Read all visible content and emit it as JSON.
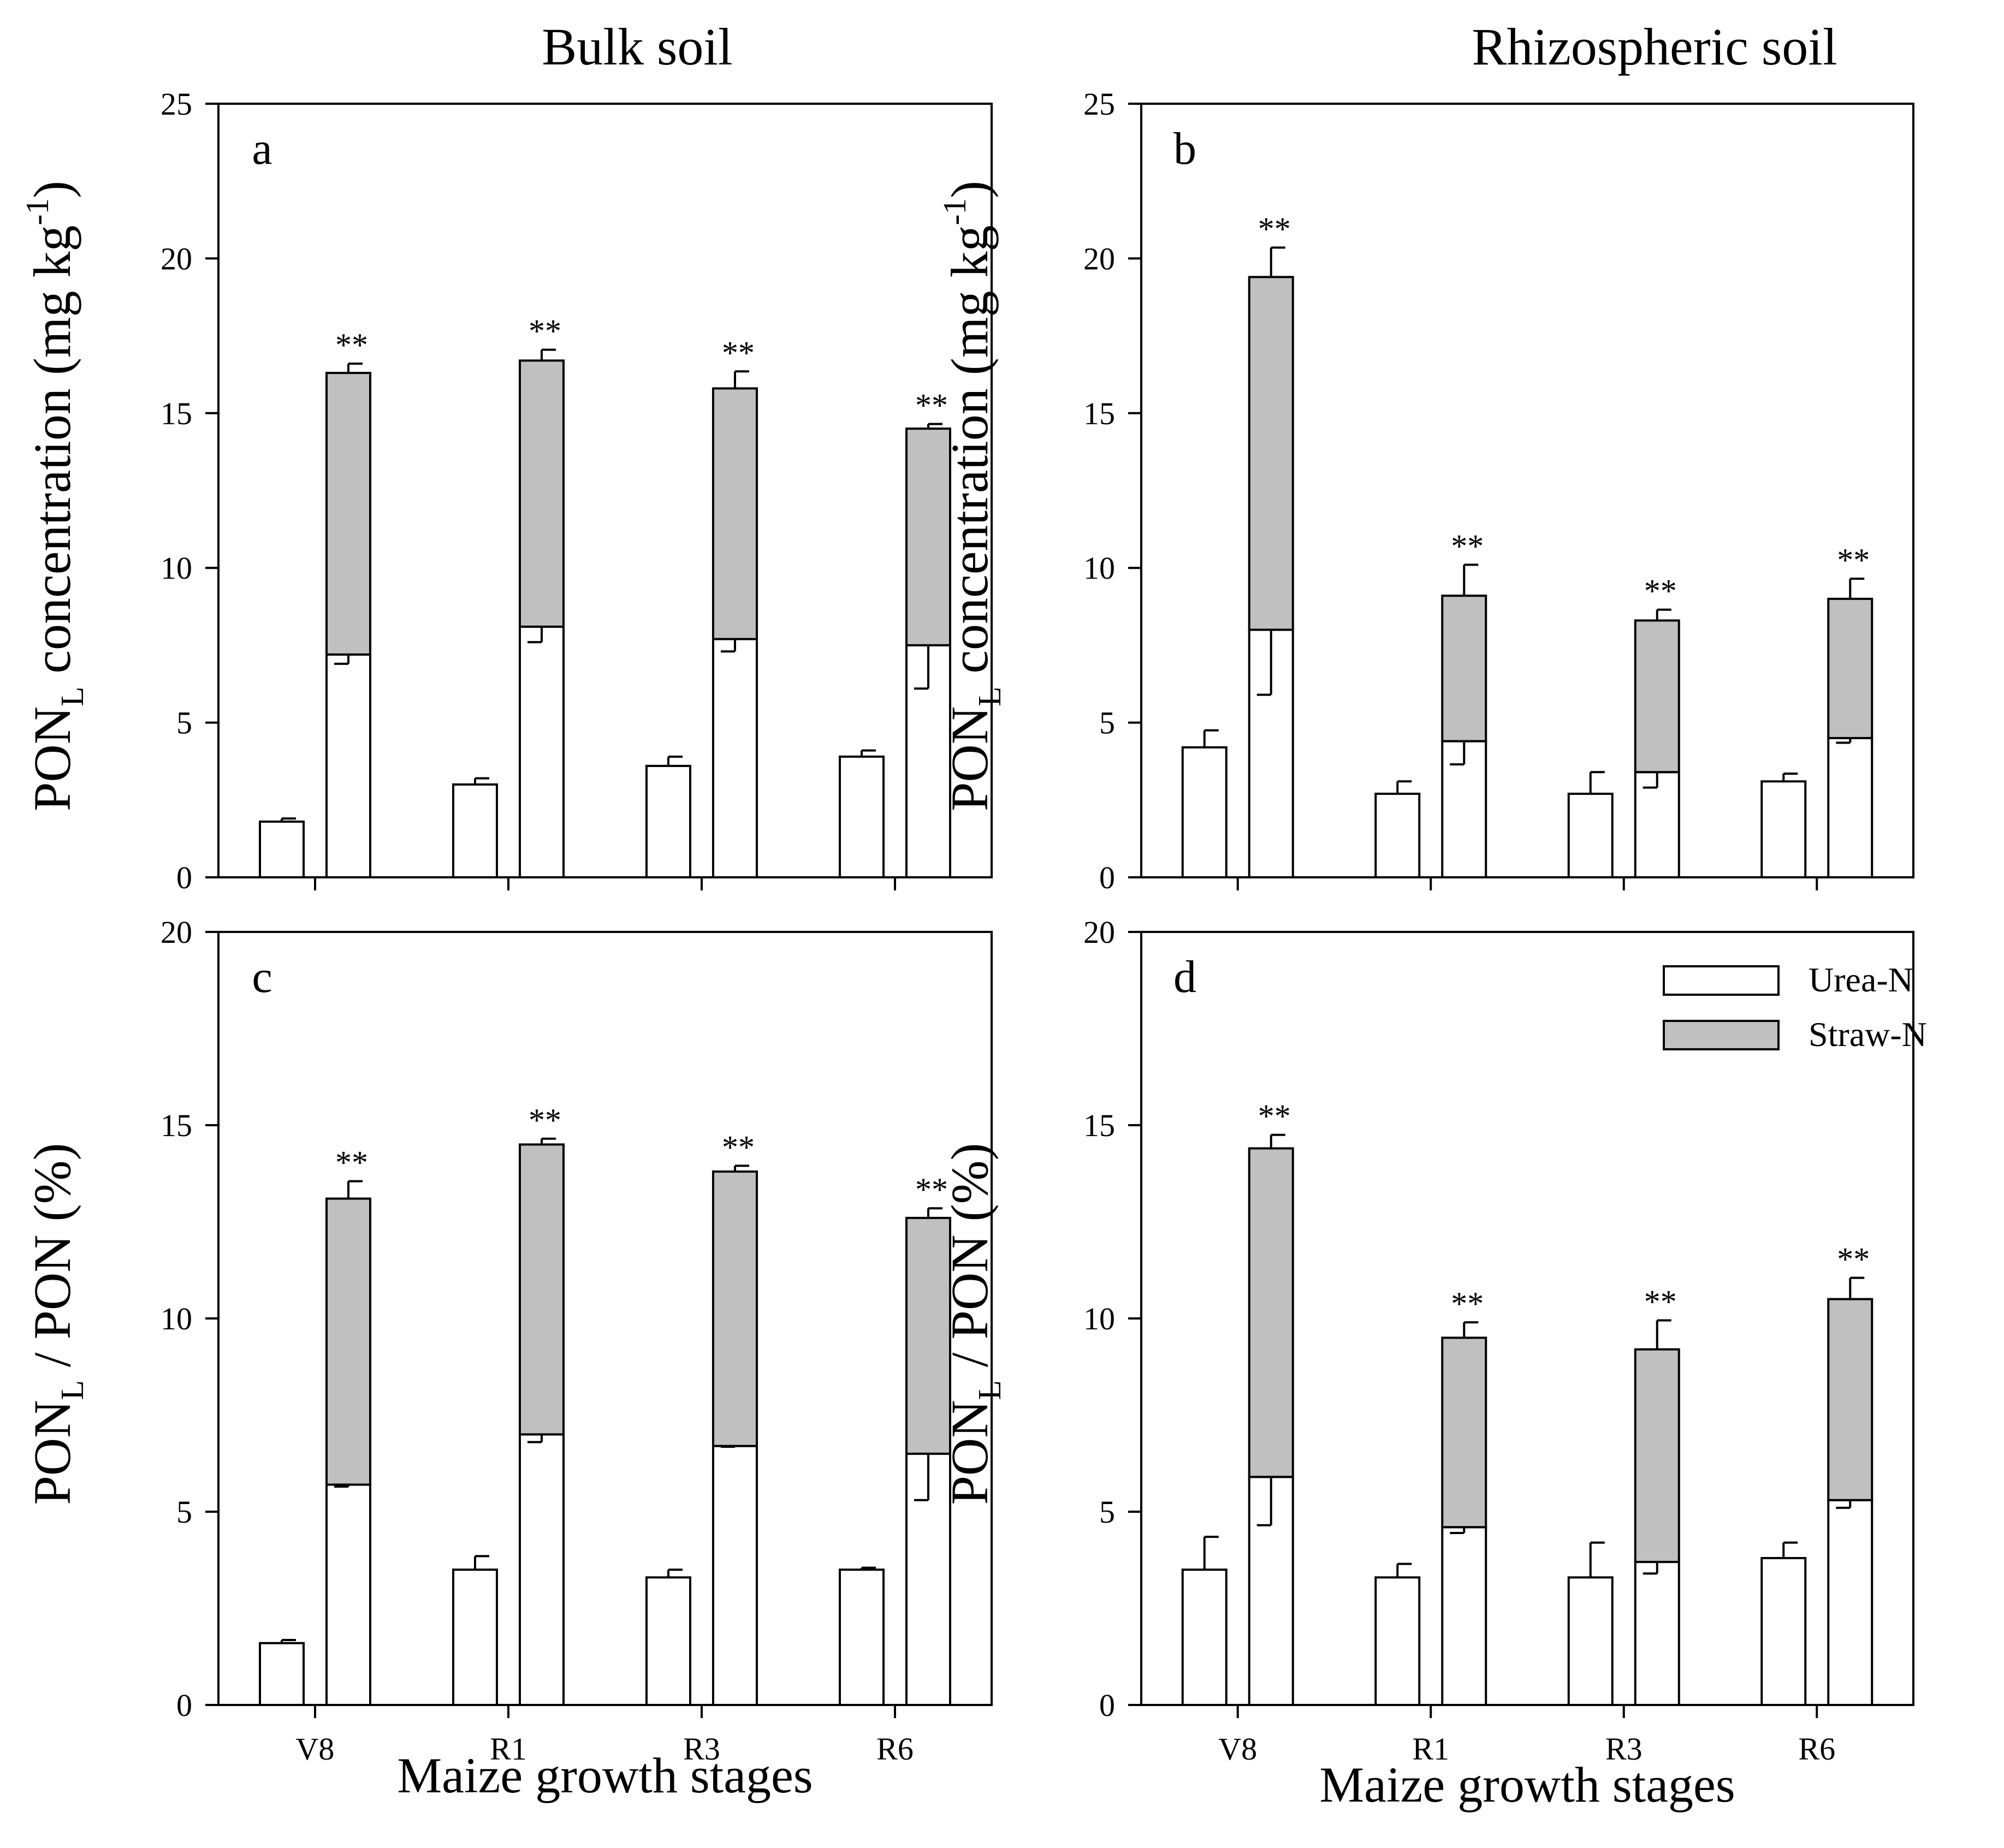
{
  "figure": {
    "column_titles": [
      "Bulk soil",
      "Rhizospheric soil"
    ],
    "ylabel_top": {
      "main": "PON",
      "sub": "L",
      "rest": " concentration (mg kg",
      "sup": "-1",
      "end": ")"
    },
    "ylabel_bottom": {
      "main": "PON",
      "sub": "L",
      "rest": " / PON (%)"
    },
    "xlabel": "Maize growth stages",
    "legend": [
      {
        "label": "Urea-N",
        "color": "#ffffff"
      },
      {
        "label": "Straw-N",
        "color": "#c0c0c0"
      }
    ],
    "significance_mark": "**"
  },
  "colors": {
    "urea": "#ffffff",
    "straw": "#c0c0c0",
    "stroke": "#000000"
  },
  "chart_data": [
    {
      "panel": "a",
      "type": "bar",
      "stacked": true,
      "categories": [
        "V8",
        "R1",
        "R3",
        "R6"
      ],
      "ylim": [
        0,
        25
      ],
      "yticks": [
        0,
        5,
        10,
        15,
        20,
        25
      ],
      "show_xticklabels": false,
      "single_bar": {
        "name": "Urea-N",
        "values": [
          1.8,
          3.0,
          3.6,
          3.9
        ],
        "errors": [
          0.1,
          0.2,
          0.3,
          0.2
        ]
      },
      "stacked_bar": {
        "urea_values": [
          7.2,
          8.1,
          7.7,
          7.5
        ],
        "urea_errors": [
          0.3,
          0.5,
          0.4,
          1.4
        ],
        "total_values": [
          16.3,
          16.7,
          15.8,
          14.5
        ],
        "total_errors": [
          0.3,
          0.35,
          0.55,
          0.15
        ]
      },
      "annotations": [
        "**",
        "**",
        "**",
        "**"
      ]
    },
    {
      "panel": "b",
      "type": "bar",
      "stacked": true,
      "categories": [
        "V8",
        "R1",
        "R3",
        "R6"
      ],
      "ylim": [
        0,
        25
      ],
      "yticks": [
        0,
        5,
        10,
        15,
        20,
        25
      ],
      "show_xticklabels": false,
      "single_bar": {
        "name": "Urea-N",
        "values": [
          4.2,
          2.7,
          2.7,
          3.1
        ],
        "errors": [
          0.55,
          0.4,
          0.7,
          0.25
        ]
      },
      "stacked_bar": {
        "urea_values": [
          8.0,
          4.4,
          3.4,
          4.5
        ],
        "urea_errors": [
          2.1,
          0.75,
          0.5,
          0.15
        ],
        "total_values": [
          19.4,
          9.1,
          8.3,
          9.0
        ],
        "total_errors": [
          0.95,
          1.0,
          0.35,
          0.65
        ]
      },
      "annotations": [
        "**",
        "**",
        "**",
        "**"
      ]
    },
    {
      "panel": "c",
      "type": "bar",
      "stacked": true,
      "categories": [
        "V8",
        "R1",
        "R3",
        "R6"
      ],
      "ylim": [
        0,
        20
      ],
      "yticks": [
        0,
        5,
        10,
        15,
        20
      ],
      "show_xticklabels": true,
      "single_bar": {
        "name": "Urea-N",
        "values": [
          1.6,
          3.5,
          3.3,
          3.5
        ],
        "errors": [
          0.08,
          0.35,
          0.2,
          0.05
        ]
      },
      "stacked_bar": {
        "urea_values": [
          5.7,
          7.0,
          6.7,
          6.5
        ],
        "urea_errors": [
          0.05,
          0.2,
          0.02,
          1.2
        ],
        "total_values": [
          13.1,
          14.5,
          13.8,
          12.6
        ],
        "total_errors": [
          0.45,
          0.15,
          0.15,
          0.25
        ]
      },
      "annotations": [
        "**",
        "**",
        "**",
        "**"
      ]
    },
    {
      "panel": "d",
      "type": "bar",
      "stacked": true,
      "categories": [
        "V8",
        "R1",
        "R3",
        "R6"
      ],
      "ylim": [
        0,
        20
      ],
      "yticks": [
        0,
        5,
        10,
        15,
        20
      ],
      "show_xticklabels": true,
      "single_bar": {
        "name": "Urea-N",
        "values": [
          3.5,
          3.3,
          3.3,
          3.8
        ],
        "errors": [
          0.85,
          0.35,
          0.9,
          0.4
        ]
      },
      "stacked_bar": {
        "urea_values": [
          5.9,
          4.6,
          3.7,
          5.3
        ],
        "urea_errors": [
          1.25,
          0.15,
          0.3,
          0.2
        ],
        "total_values": [
          14.4,
          9.5,
          9.2,
          10.5
        ],
        "total_errors": [
          0.35,
          0.4,
          0.75,
          0.55
        ]
      },
      "annotations": [
        "**",
        "**",
        "**",
        "**"
      ],
      "legend": "top-right"
    }
  ]
}
